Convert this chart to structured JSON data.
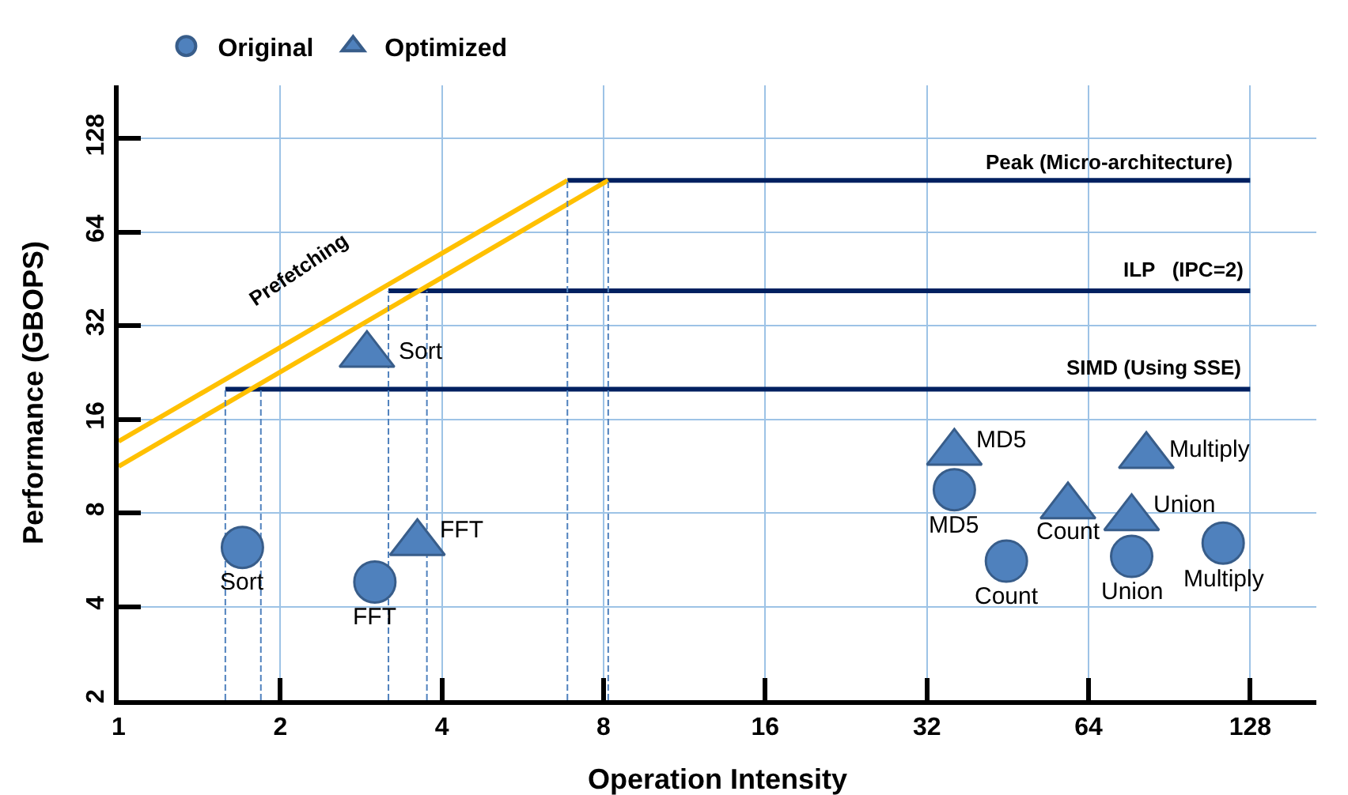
{
  "chart_data": {
    "type": "scatter",
    "xlabel": "Operation Intensity",
    "ylabel": "Performance (GBOPS)",
    "log": "xy",
    "grid": true,
    "legend": "top left",
    "xlim": [
      1,
      170
    ],
    "xticks": [
      1,
      2,
      4,
      8,
      16,
      32,
      64,
      128
    ],
    "ylim": [
      2,
      190
    ],
    "yticks": [
      2,
      4,
      8,
      16,
      32,
      64,
      128
    ],
    "series": [
      {
        "name": "Original",
        "marker": "circle",
        "color": "#4f81bd",
        "x": [
          1.7,
          3.0,
          36,
          45,
          77,
          114
        ],
        "values": [
          6.2,
          4.8,
          9.5,
          5.6,
          5.8,
          6.4
        ]
      },
      {
        "name": "Optimized",
        "marker": "triangle",
        "color": "#4f81bd",
        "x": [
          2.9,
          3.6,
          36,
          58.6,
          77,
          82
        ],
        "values": [
          25.8,
          6.4,
          12.5,
          8.4,
          7.7,
          12.2
        ]
      },
      {
        "type": "line",
        "marker": "none",
        "line_style": "solid",
        "color": "#002060",
        "x": [
          6.85,
          128
        ],
        "values": [
          94,
          94
        ]
      },
      {
        "type": "line",
        "marker": "none",
        "line_style": "solid",
        "color": "#002060",
        "x": [
          3.18,
          128
        ],
        "values": [
          41.5,
          41.5
        ]
      },
      {
        "type": "line",
        "marker": "none",
        "line_style": "solid",
        "color": "#002060",
        "x": [
          1.58,
          128
        ],
        "values": [
          20,
          20
        ]
      },
      {
        "type": "line",
        "marker": "none",
        "line_style": "solid",
        "color": "#ffc000",
        "x": [
          1,
          6.85
        ],
        "values": [
          13.6,
          94
        ]
      },
      {
        "type": "line",
        "marker": "none",
        "line_style": "solid",
        "color": "#ffc000",
        "x": [
          1,
          8.16
        ],
        "values": [
          11.3,
          94
        ]
      },
      {
        "type": "line",
        "marker": "none",
        "line_style": "dashed",
        "color": "#4f81bd",
        "x": [
          1.58,
          1.58
        ],
        "values": [
          2,
          20
        ]
      },
      {
        "type": "line",
        "marker": "none",
        "line_style": "dashed",
        "color": "#4f81bd",
        "x": [
          1.84,
          1.84
        ],
        "values": [
          2,
          20
        ]
      },
      {
        "type": "line",
        "marker": "none",
        "line_style": "dashed",
        "color": "#4f81bd",
        "x": [
          3.18,
          3.18
        ],
        "values": [
          2,
          41.5
        ]
      },
      {
        "type": "line",
        "marker": "none",
        "line_style": "dashed",
        "color": "#4f81bd",
        "x": [
          3.75,
          3.75
        ],
        "values": [
          2,
          41.5
        ]
      },
      {
        "type": "line",
        "marker": "none",
        "line_style": "dashed",
        "color": "#4f81bd",
        "x": [
          6.85,
          6.85
        ],
        "values": [
          2,
          94
        ]
      },
      {
        "type": "line",
        "marker": "none",
        "line_style": "dashed",
        "color": "#4f81bd",
        "x": [
          8.16,
          8.16
        ],
        "values": [
          2,
          94
        ]
      }
    ],
    "annotations": [
      "Prefetching",
      {
        "text": "Peak (Micro-architecture)",
        "x": 70,
        "y": 94
      },
      {
        "text": "ILP   (IPC=2)",
        "x": 96,
        "y": 41.5
      },
      {
        "text": "SIMD (Using SSE)",
        "x": 85,
        "y": 20
      },
      {
        "text": "Sort",
        "x": 1.7,
        "y": 6.2
      },
      {
        "text": "FFT",
        "x": 3.0,
        "y": 4.8
      },
      {
        "text": "MD5",
        "x": 36,
        "y": 9.5
      },
      {
        "text": "Count",
        "x": 45,
        "y": 5.6
      },
      {
        "text": "Union",
        "x": 77,
        "y": 5.8
      },
      {
        "text": "Multiply",
        "x": 114,
        "y": 6.4
      },
      {
        "text": "Sort",
        "x": 2.9,
        "y": 25.8
      },
      {
        "text": "FFT",
        "x": 3.6,
        "y": 6.4
      },
      {
        "text": "MD5",
        "x": 36,
        "y": 12.5
      },
      {
        "text": "Count",
        "x": 58.6,
        "y": 8.4
      },
      {
        "text": "Union",
        "x": 77,
        "y": 7.7
      },
      {
        "text": "Multiply",
        "x": 82,
        "y": 12.2
      }
    ]
  }
}
